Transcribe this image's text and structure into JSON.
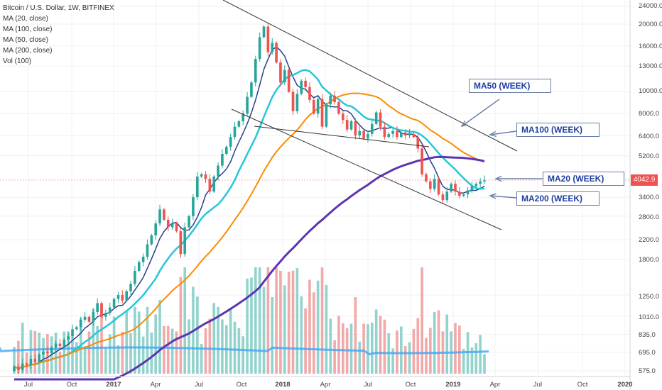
{
  "legend": {
    "title": "Bitcoin / U.S. Dollar, 1W, BITFINEX",
    "indicators": [
      "MA (20, close)",
      "MA (100, close)",
      "MA (50, close)",
      "MA (200, close)",
      "Vol (100)"
    ]
  },
  "annotations": {
    "ma50": "MA50 (WEEK)",
    "ma100": "MA100 (WEEK)",
    "ma20": "MA20 (WEEK)",
    "ma200": "MA200 (WEEK)"
  },
  "current_price": "4042.9",
  "colors": {
    "up": "#26a69a",
    "down": "#ef5350",
    "vol_up": "#80cbc4",
    "vol_down": "#ef9a9a",
    "ma20": "#283f8c",
    "ma50": "#26c6da",
    "ma100": "#fb8c00",
    "ma200": "#5e35b1",
    "vol_ma": "#42a5f5",
    "trendline": "#333333",
    "arrow": "#6b7fa8"
  },
  "chart_data": {
    "type": "candlestick",
    "scale": "log",
    "x_ticks": [
      "Jul",
      "Oct",
      "2017",
      "Apr",
      "Jul",
      "Oct",
      "2018",
      "Apr",
      "Jul",
      "Oct",
      "2019",
      "Apr",
      "Jul",
      "Oct",
      "2020"
    ],
    "y_ticks": [
      "24000.0",
      "20000.0",
      "16000.0",
      "13000.0",
      "10000.0",
      "8000.0",
      "6400.0",
      "5200.0",
      "4042.9",
      "3400.0",
      "2800.0",
      "2200.0",
      "1800.0",
      "1250.0",
      "1010.0",
      "835.0",
      "695.0",
      "575.0"
    ],
    "price_levels": [
      24000,
      20000,
      16000,
      13000,
      10000,
      8000,
      6400,
      5200,
      3400,
      2800,
      2200,
      1800,
      1250,
      1010,
      835,
      695,
      575
    ],
    "candles": [
      [
        575,
        600
      ],
      [
        600,
        580
      ],
      [
        580,
        620
      ],
      [
        620,
        610
      ],
      [
        610,
        650
      ],
      [
        650,
        630
      ],
      [
        630,
        680
      ],
      [
        680,
        700
      ],
      [
        700,
        690
      ],
      [
        690,
        730
      ],
      [
        730,
        760
      ],
      [
        760,
        740
      ],
      [
        740,
        790
      ],
      [
        790,
        820
      ],
      [
        820,
        880
      ],
      [
        880,
        900
      ],
      [
        900,
        970
      ],
      [
        970,
        1000
      ],
      [
        1000,
        950
      ],
      [
        950,
        1050
      ],
      [
        1050,
        1150
      ],
      [
        1150,
        1000
      ],
      [
        1000,
        1040
      ],
      [
        1040,
        1100
      ],
      [
        1100,
        1200
      ],
      [
        1200,
        1250
      ],
      [
        1250,
        1180
      ],
      [
        1180,
        1300
      ],
      [
        1300,
        1400
      ],
      [
        1400,
        1600
      ],
      [
        1600,
        1750
      ],
      [
        1750,
        1850
      ],
      [
        1850,
        2100
      ],
      [
        2100,
        2300
      ],
      [
        2300,
        2600
      ],
      [
        2600,
        3000
      ],
      [
        3000,
        2700
      ],
      [
        2700,
        2500
      ],
      [
        2500,
        2600
      ],
      [
        2600,
        2400
      ],
      [
        2400,
        1900
      ],
      [
        1900,
        2500
      ],
      [
        2500,
        2800
      ],
      [
        2800,
        3400
      ],
      [
        3400,
        4200
      ],
      [
        4200,
        4300
      ],
      [
        4300,
        4100
      ],
      [
        4100,
        3600
      ],
      [
        3600,
        4200
      ],
      [
        4200,
        4700
      ],
      [
        4700,
        5300
      ],
      [
        5300,
        5700
      ],
      [
        5700,
        6300
      ],
      [
        6300,
        7000
      ],
      [
        7000,
        7400
      ],
      [
        7400,
        8000
      ],
      [
        8000,
        9500
      ],
      [
        9500,
        11000
      ],
      [
        11000,
        14000
      ],
      [
        14000,
        17500
      ],
      [
        17500,
        19500
      ],
      [
        19500,
        15000
      ],
      [
        15000,
        16500
      ],
      [
        16500,
        13500
      ],
      [
        13500,
        11000
      ],
      [
        11000,
        12500
      ],
      [
        12500,
        10000
      ],
      [
        10000,
        8200
      ],
      [
        8200,
        9800
      ],
      [
        9800,
        11200
      ],
      [
        11200,
        10500
      ],
      [
        10500,
        9200
      ],
      [
        9200,
        8000
      ],
      [
        8000,
        9300
      ],
      [
        9300,
        7000
      ],
      [
        7000,
        8800
      ],
      [
        8800,
        9600
      ],
      [
        9600,
        9000
      ],
      [
        9000,
        8000
      ],
      [
        8000,
        7500
      ],
      [
        7500,
        6800
      ],
      [
        6800,
        7400
      ],
      [
        7400,
        6400
      ],
      [
        6400,
        6700
      ],
      [
        6700,
        6200
      ],
      [
        6200,
        6500
      ],
      [
        6500,
        7200
      ],
      [
        7200,
        8100
      ],
      [
        8100,
        7000
      ],
      [
        7000,
        6300
      ],
      [
        6300,
        6500
      ],
      [
        6500,
        6700
      ],
      [
        6700,
        6300
      ],
      [
        6300,
        6600
      ],
      [
        6600,
        6400
      ],
      [
        6400,
        6500
      ],
      [
        6500,
        6300
      ],
      [
        6300,
        5600
      ],
      [
        5600,
        4300
      ],
      [
        4300,
        4000
      ],
      [
        4000,
        3700
      ],
      [
        3700,
        4100
      ],
      [
        4100,
        3500
      ],
      [
        3500,
        3300
      ],
      [
        3300,
        3600
      ],
      [
        3600,
        3900
      ],
      [
        3900,
        3600
      ],
      [
        3600,
        3450
      ],
      [
        3450,
        3500
      ],
      [
        3500,
        3650
      ],
      [
        3650,
        3800
      ],
      [
        3800,
        3900
      ],
      [
        3900,
        4000
      ],
      [
        4000,
        4042.9
      ]
    ]
  }
}
